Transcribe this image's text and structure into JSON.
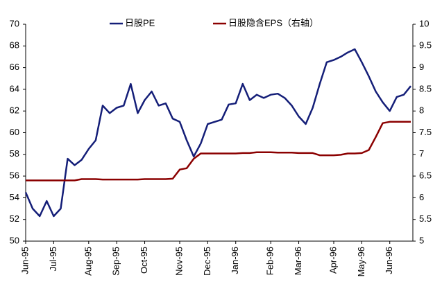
{
  "chart_data": {
    "type": "line",
    "categories": [
      "Jun-95",
      null,
      null,
      null,
      "Jul-95",
      null,
      null,
      null,
      null,
      "Aug-95",
      null,
      null,
      null,
      "Sep-95",
      null,
      null,
      null,
      "Oct-95",
      null,
      null,
      null,
      null,
      "Nov-95",
      null,
      null,
      null,
      "Dec-95",
      null,
      null,
      null,
      "Jan-96",
      null,
      null,
      null,
      null,
      "Feb-96",
      null,
      null,
      null,
      "Mar-96",
      null,
      null,
      null,
      null,
      "Apr-96",
      null,
      null,
      null,
      "May-96",
      null,
      null,
      null,
      "Jun-96",
      null,
      null,
      null
    ],
    "series": [
      {
        "name": "日股PE",
        "color": "#141e78",
        "values": [
          54.5,
          53,
          52.3,
          53.7,
          52.3,
          53,
          57.6,
          57,
          57.5,
          58.5,
          59.3,
          62.5,
          61.8,
          62.3,
          62.5,
          64.5,
          61.8,
          63,
          63.8,
          62.5,
          62.7,
          61.3,
          61,
          59.3,
          57.8,
          59,
          60.8,
          61,
          61.2,
          62.6,
          62.7,
          64.5,
          63,
          63.5,
          63.2,
          63.5,
          63.6,
          63.2,
          62.5,
          61.5,
          60.8,
          62.3,
          64.5,
          66.5,
          66.7,
          67,
          67.4,
          67.7,
          66.5,
          65.2,
          63.8,
          62.8,
          62,
          63.3,
          63.5,
          64.3
        ]
      },
      {
        "name": "日股隐含EPS（右轴）",
        "color": "#8b0000",
        "axis": "y2",
        "values": [
          6.4,
          6.4,
          6.4,
          6.4,
          6.4,
          6.4,
          6.4,
          6.4,
          6.43,
          6.43,
          6.43,
          6.42,
          6.42,
          6.42,
          6.42,
          6.42,
          6.42,
          6.43,
          6.43,
          6.43,
          6.43,
          6.44,
          6.65,
          6.68,
          6.9,
          7.02,
          7.02,
          7.02,
          7.02,
          7.02,
          7.02,
          7.03,
          7.03,
          7.05,
          7.05,
          7.05,
          7.04,
          7.04,
          7.04,
          7.03,
          7.03,
          7.03,
          6.98,
          6.98,
          6.98,
          6.99,
          7.02,
          7.02,
          7.03,
          7.1,
          7.4,
          7.72,
          7.75,
          7.75,
          7.75,
          7.75
        ]
      }
    ],
    "ylim": [
      50,
      70
    ],
    "yticks": [
      50,
      52,
      54,
      56,
      58,
      60,
      62,
      64,
      66,
      68,
      70
    ],
    "y2lim": [
      5,
      10
    ],
    "y2ticks": [
      5,
      5.5,
      6,
      6.5,
      7,
      7.5,
      8,
      8.5,
      9,
      9.5,
      10
    ],
    "grid": false
  }
}
